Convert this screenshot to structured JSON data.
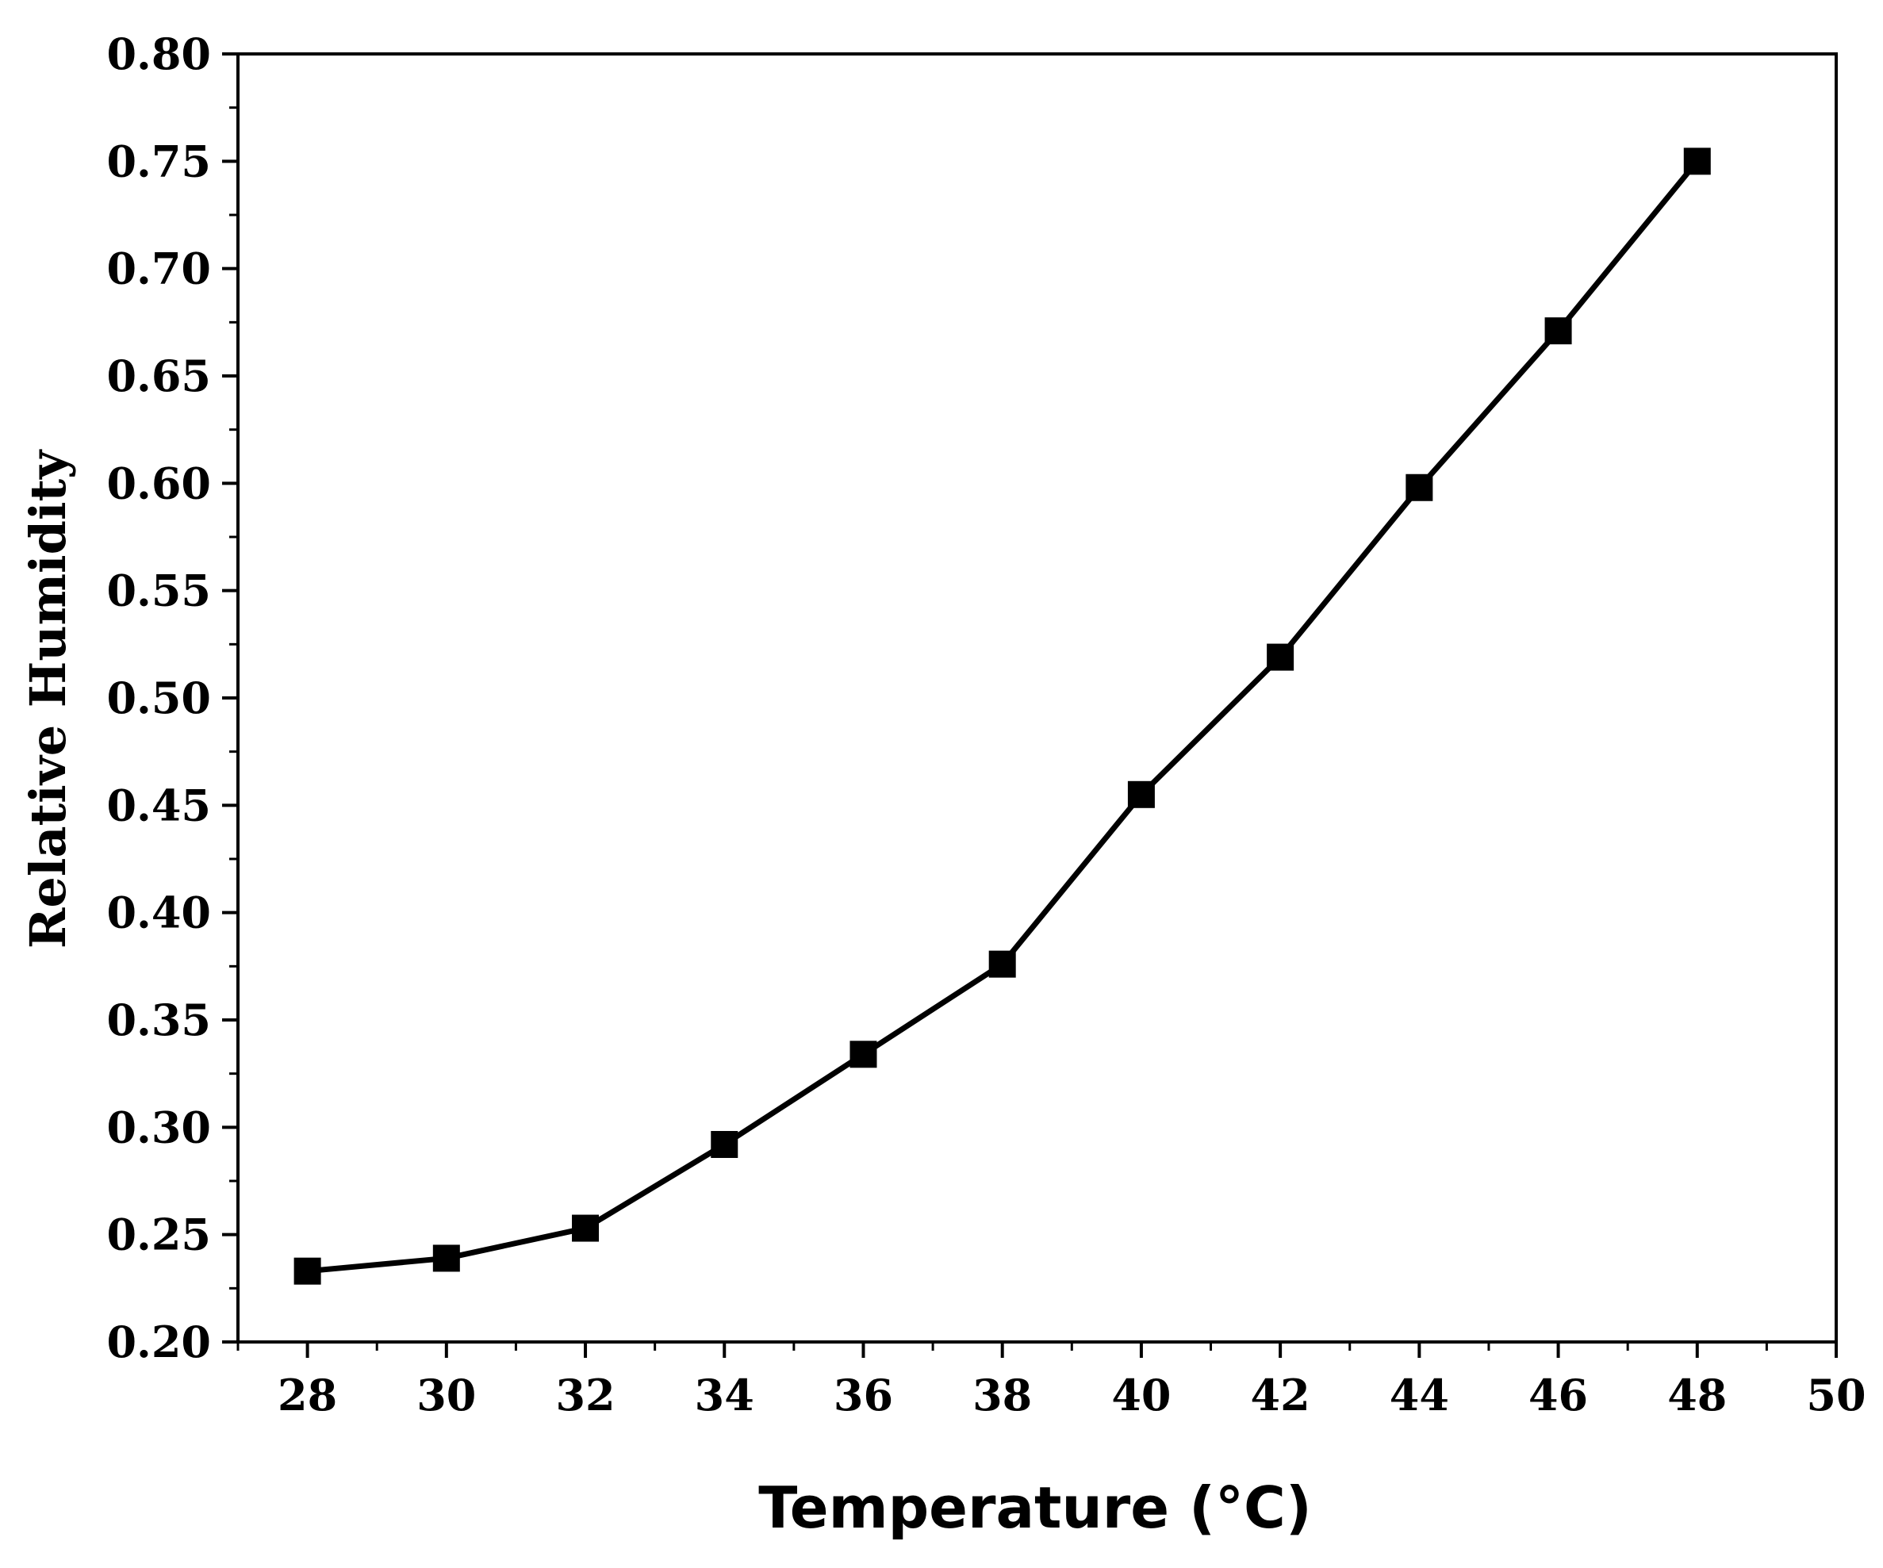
{
  "chart_data": {
    "type": "line",
    "xlabel": "Temperature (°C)",
    "ylabel": "Relative Humidity",
    "xlim": [
      27,
      50
    ],
    "ylim": [
      0.2,
      0.8
    ],
    "x_ticks": [
      28,
      30,
      32,
      34,
      36,
      38,
      40,
      42,
      44,
      46,
      48,
      50
    ],
    "y_ticks": [
      "0.20",
      "0.25",
      "0.30",
      "0.35",
      "0.40",
      "0.45",
      "0.50",
      "0.55",
      "0.60",
      "0.65",
      "0.70",
      "0.75",
      "0.80"
    ],
    "grid": false,
    "marker": "square",
    "line_color": "#000000",
    "series": [
      {
        "x": [
          28,
          30,
          32,
          34,
          36,
          38,
          40,
          42,
          44,
          46,
          48
        ],
        "y": [
          0.233,
          0.239,
          0.253,
          0.292,
          0.334,
          0.376,
          0.455,
          0.519,
          0.598,
          0.671,
          0.75
        ]
      }
    ]
  }
}
